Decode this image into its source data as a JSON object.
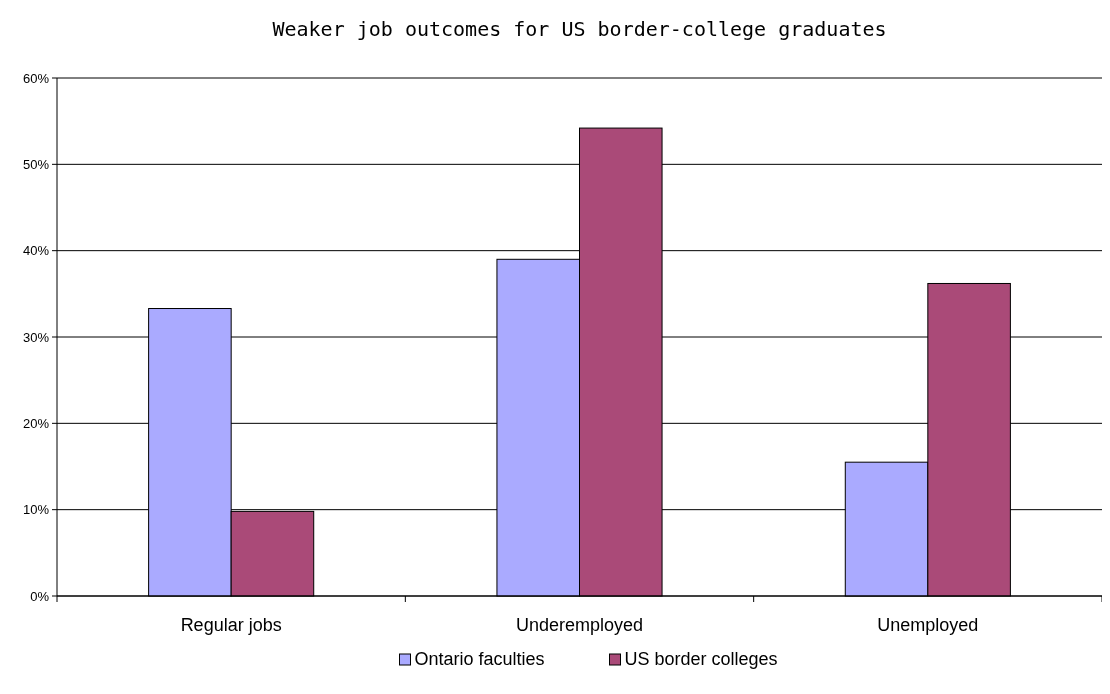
{
  "chart_data": {
    "type": "bar",
    "title": "Weaker job outcomes for US border-college graduates",
    "categories": [
      "Regular jobs",
      "Underemployed",
      "Unemployed"
    ],
    "series": [
      {
        "name": "Ontario faculties",
        "color": "#aaaaff",
        "values": [
          33.3,
          39,
          15.5
        ]
      },
      {
        "name": "US border colleges",
        "color": "#aa4a78",
        "values": [
          9.8,
          54.2,
          36.2
        ]
      }
    ],
    "ylim": [
      0,
      60
    ],
    "yticks": [
      {
        "value": 0,
        "label": "0%"
      },
      {
        "value": 10,
        "label": "10%"
      },
      {
        "value": 20,
        "label": "20%"
      },
      {
        "value": 30,
        "label": "30%"
      },
      {
        "value": 40,
        "label": "40%"
      },
      {
        "value": 50,
        "label": "50%"
      },
      {
        "value": 60,
        "label": "60%"
      }
    ],
    "grid": "y",
    "legend": "bottom"
  }
}
